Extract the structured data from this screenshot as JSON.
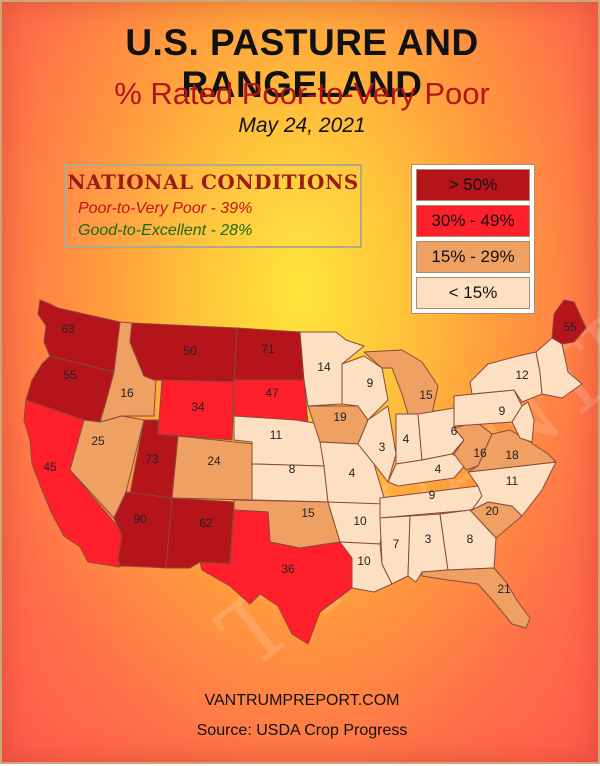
{
  "title": "U.S. PASTURE AND RANGELAND",
  "subtitle": "% Rated Poor-to-Very Poor",
  "date": "May 24, 2021",
  "national": {
    "heading": "NATIONAL CONDITIONS",
    "poor": "Poor-to-Very Poor - 39%",
    "good": "Good-to-Excellent - 28%"
  },
  "legend": [
    {
      "label": "> 50%",
      "color": "#b5141a",
      "text_color": "#111"
    },
    {
      "label": "30% - 49%",
      "color": "#ff1f2a",
      "text_color": "#111"
    },
    {
      "label": "15% - 29%",
      "color": "#efa063",
      "text_color": "#111"
    },
    {
      "label": "< 15%",
      "color": "#fde0c2",
      "text_color": "#111"
    }
  ],
  "colors": {
    "over50": "#b5141a",
    "30to49": "#ff1f2a",
    "15to29": "#efa063",
    "under15": "#fde0c2",
    "border": "#8a4a3a"
  },
  "states": [
    {
      "id": "WA",
      "value": "63",
      "class": "over50"
    },
    {
      "id": "OR",
      "value": "55",
      "class": "over50"
    },
    {
      "id": "CA",
      "value": "45",
      "class": "30to49"
    },
    {
      "id": "ID",
      "value": "16",
      "class": "15to29"
    },
    {
      "id": "NV",
      "value": "25",
      "class": "15to29"
    },
    {
      "id": "MT",
      "value": "50",
      "class": "over50"
    },
    {
      "id": "WY",
      "value": "34",
      "class": "30to49"
    },
    {
      "id": "UT",
      "value": "73",
      "class": "over50"
    },
    {
      "id": "AZ",
      "value": "90",
      "class": "over50"
    },
    {
      "id": "CO",
      "value": "24",
      "class": "15to29"
    },
    {
      "id": "NM",
      "value": "62",
      "class": "over50"
    },
    {
      "id": "ND",
      "value": "71",
      "class": "over50"
    },
    {
      "id": "SD",
      "value": "47",
      "class": "30to49"
    },
    {
      "id": "NE",
      "value": "11",
      "class": "under15"
    },
    {
      "id": "KS",
      "value": "8",
      "class": "under15"
    },
    {
      "id": "OK",
      "value": "15",
      "class": "15to29"
    },
    {
      "id": "TX",
      "value": "36",
      "class": "30to49"
    },
    {
      "id": "MN",
      "value": "14",
      "class": "under15"
    },
    {
      "id": "IA",
      "value": "19",
      "class": "15to29"
    },
    {
      "id": "MO",
      "value": "4",
      "class": "under15"
    },
    {
      "id": "AR",
      "value": "10",
      "class": "under15"
    },
    {
      "id": "LA",
      "value": "10",
      "class": "under15"
    },
    {
      "id": "WI",
      "value": "9",
      "class": "under15"
    },
    {
      "id": "IL",
      "value": "3",
      "class": "under15"
    },
    {
      "id": "MI",
      "value": "15",
      "class": "15to29"
    },
    {
      "id": "IN",
      "value": "4",
      "class": "under15"
    },
    {
      "id": "OH",
      "value": "6",
      "class": "under15"
    },
    {
      "id": "KY",
      "value": "4",
      "class": "under15"
    },
    {
      "id": "TN",
      "value": "9",
      "class": "under15"
    },
    {
      "id": "MS",
      "value": "7",
      "class": "under15"
    },
    {
      "id": "AL",
      "value": "3",
      "class": "under15"
    },
    {
      "id": "GA",
      "value": "8",
      "class": "under15"
    },
    {
      "id": "FL",
      "value": "21",
      "class": "15to29"
    },
    {
      "id": "SC",
      "value": "20",
      "class": "15to29"
    },
    {
      "id": "NC",
      "value": "11",
      "class": "under15"
    },
    {
      "id": "VA",
      "value": "18",
      "class": "15to29"
    },
    {
      "id": "WV",
      "value": "16",
      "class": "15to29"
    },
    {
      "id": "PA",
      "value": "9",
      "class": "under15"
    },
    {
      "id": "NY",
      "value": "12",
      "class": "under15"
    },
    {
      "id": "ME",
      "value": "55",
      "class": "over50"
    }
  ],
  "website": "VANTRUMPREPORT.COM",
  "source": "Source: USDA Crop Progress"
}
